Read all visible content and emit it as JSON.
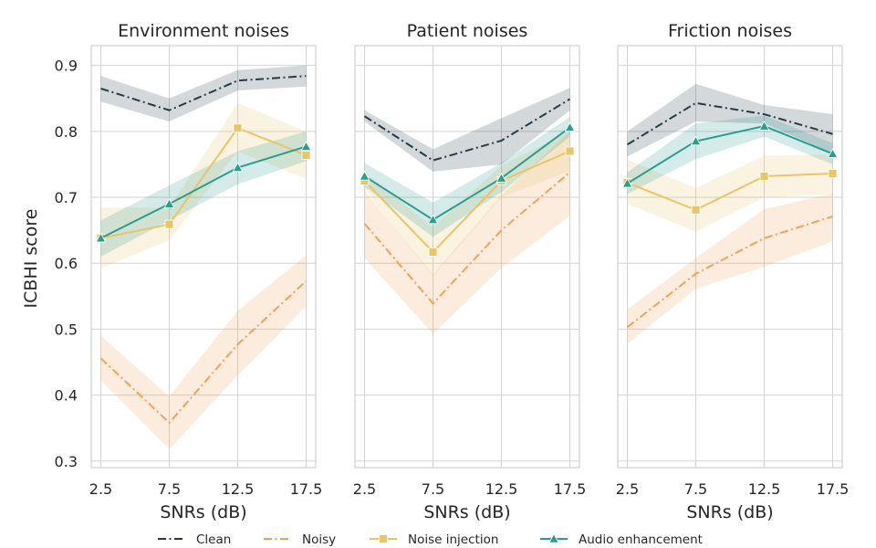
{
  "chart_data": {
    "type": "line",
    "ylabel": "ICBHI score",
    "ylim": [
      0.29,
      0.93
    ],
    "yticks": [
      0.3,
      0.4,
      0.5,
      0.6,
      0.7,
      0.8,
      0.9
    ],
    "ytick_labels": [
      "0.3",
      "0.4",
      "0.5",
      "0.6",
      "0.7",
      "0.8",
      "0.9"
    ],
    "x": [
      2.5,
      7.5,
      12.5,
      17.5
    ],
    "xtick_labels": [
      "2.5",
      "7.5",
      "12.5",
      "17.5"
    ],
    "xlim": [
      1.8,
      18.2
    ],
    "grid": true,
    "legend_position": "bottom",
    "legend": [
      {
        "key": "clean",
        "label": "Clean",
        "color": "#243b48",
        "dash": "dashdot",
        "marker": "none"
      },
      {
        "key": "noisy",
        "label": "Noisy",
        "color": "#f0a15a",
        "dash": "dashdot",
        "marker": "none"
      },
      {
        "key": "injection",
        "label": "Noise injection",
        "color": "#e8c46a",
        "dash": "solid",
        "marker": "square"
      },
      {
        "key": "enhancement",
        "label": "Audio enhancement",
        "color": "#2a9d8f",
        "dash": "solid",
        "marker": "triangle"
      }
    ],
    "panels": [
      {
        "title": "Environment noises",
        "xlabel": "SNRs (dB)",
        "series": [
          {
            "key": "clean",
            "values": [
              0.865,
              0.832,
              0.877,
              0.884
            ],
            "ci_low": [
              0.845,
              0.815,
              0.862,
              0.868
            ],
            "ci_high": [
              0.884,
              0.85,
              0.893,
              0.9
            ]
          },
          {
            "key": "noisy",
            "values": [
              0.456,
              0.358,
              0.477,
              0.573
            ],
            "ci_low": [
              0.422,
              0.318,
              0.43,
              0.535
            ],
            "ci_high": [
              0.49,
              0.398,
              0.528,
              0.612
            ]
          },
          {
            "key": "injection",
            "values": [
              0.638,
              0.659,
              0.805,
              0.764
            ],
            "ci_low": [
              0.592,
              0.635,
              0.77,
              0.728
            ],
            "ci_high": [
              0.685,
              0.684,
              0.843,
              0.8
            ]
          },
          {
            "key": "enhancement",
            "values": [
              0.638,
              0.69,
              0.745,
              0.777
            ],
            "ci_low": [
              0.61,
              0.665,
              0.72,
              0.755
            ],
            "ci_high": [
              0.665,
              0.718,
              0.77,
              0.8
            ]
          }
        ]
      },
      {
        "title": "Patient noises",
        "xlabel": "SNRs (dB)",
        "series": [
          {
            "key": "clean",
            "values": [
              0.823,
              0.756,
              0.786,
              0.849
            ],
            "ci_low": [
              0.815,
              0.739,
              0.75,
              0.832
            ],
            "ci_high": [
              0.832,
              0.773,
              0.82,
              0.866
            ]
          },
          {
            "key": "noisy",
            "values": [
              0.66,
              0.539,
              0.65,
              0.738
            ],
            "ci_low": [
              0.608,
              0.493,
              0.593,
              0.672
            ],
            "ci_high": [
              0.71,
              0.583,
              0.703,
              0.8
            ]
          },
          {
            "key": "injection",
            "values": [
              0.725,
              0.617,
              0.725,
              0.77
            ],
            "ci_low": [
              0.712,
              0.58,
              0.7,
              0.74
            ],
            "ci_high": [
              0.738,
              0.655,
              0.748,
              0.8
            ]
          },
          {
            "key": "enhancement",
            "values": [
              0.732,
              0.666,
              0.729,
              0.806
            ],
            "ci_low": [
              0.716,
              0.64,
              0.708,
              0.792
            ],
            "ci_high": [
              0.752,
              0.692,
              0.752,
              0.822
            ]
          }
        ]
      },
      {
        "title": "Friction noises",
        "xlabel": "SNRs (dB)",
        "series": [
          {
            "key": "clean",
            "values": [
              0.78,
              0.843,
              0.826,
              0.796
            ],
            "ci_low": [
              0.762,
              0.815,
              0.812,
              0.767
            ],
            "ci_high": [
              0.8,
              0.872,
              0.84,
              0.826
            ]
          },
          {
            "key": "noisy",
            "values": [
              0.503,
              0.584,
              0.638,
              0.671
            ],
            "ci_low": [
              0.478,
              0.561,
              0.595,
              0.633
            ],
            "ci_high": [
              0.53,
              0.608,
              0.682,
              0.706
            ]
          },
          {
            "key": "injection",
            "values": [
              0.722,
              0.681,
              0.732,
              0.736
            ],
            "ci_low": [
              0.69,
              0.648,
              0.7,
              0.705
            ],
            "ci_high": [
              0.757,
              0.714,
              0.763,
              0.765
            ]
          },
          {
            "key": "enhancement",
            "values": [
              0.721,
              0.785,
              0.808,
              0.766
            ],
            "ci_low": [
              0.705,
              0.758,
              0.792,
              0.75
            ],
            "ci_high": [
              0.738,
              0.812,
              0.824,
              0.782
            ]
          }
        ]
      }
    ]
  }
}
